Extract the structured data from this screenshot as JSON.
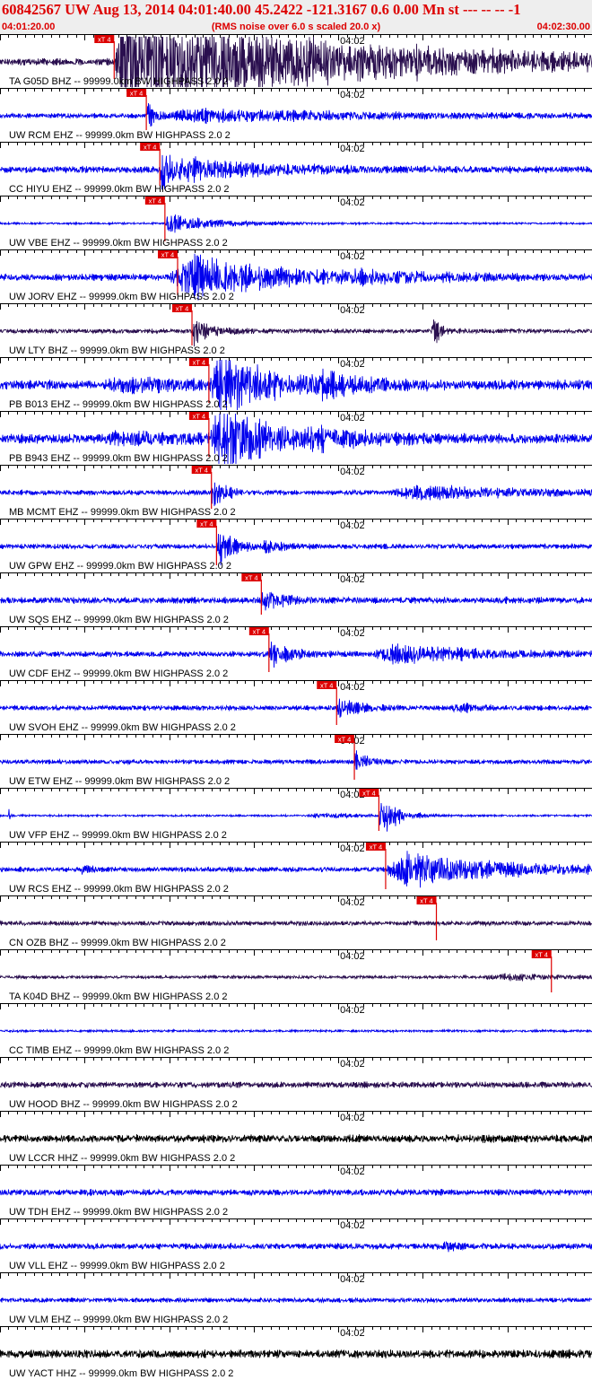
{
  "header": {
    "title": "60842567 UW Aug 13, 2014 04:01:40.00   45.2422 -121.3167  0.6 0.00 Mn st --- -- --  -1",
    "start_time": "04:01:20.00",
    "noise_note": "(RMS noise over 6.0 s scaled 20.0 x)",
    "end_time": "04:02:30.00"
  },
  "chart_data": {
    "type": "line",
    "x_unit": "seconds after 04:01:20.00",
    "xlim": [
      0,
      70
    ],
    "minute_mark": {
      "time": 40,
      "label": "04:02"
    },
    "pick_label": "xT 4",
    "event": {
      "time": 20
    },
    "colors": {
      "header": "#dd0000",
      "pick": "#dd0000",
      "axis": "#000000"
    },
    "traces": [
      {
        "label": "TA G05D BHZ -- 99999.0km BW  HIGHPASS  2.0  2",
        "color": "#2a0f4f",
        "pick": 13.5,
        "pick_len": 4.2,
        "noise": 0.18,
        "bursts": [
          {
            "t": 13.5,
            "amp": 2.6,
            "dur": 60,
            "rise": 1.2,
            "clip": true
          }
        ]
      },
      {
        "label": "UW RCM EHZ -- 99999.0km BW  HIGHPASS  2.0  2",
        "color": "#0000ee",
        "pick": 17.3,
        "pick_len": 3.9,
        "noise": 0.13,
        "bursts": [
          {
            "t": 17.3,
            "amp": 0.9,
            "dur": 2,
            "rise": 0.2
          },
          {
            "t": 20,
            "amp": 0.35,
            "dur": 48,
            "rise": 3
          }
        ]
      },
      {
        "label": "CC HIYU EHZ -- 99999.0km BW  HIGHPASS  2.0  2",
        "color": "#0000ee",
        "pick": 18.9,
        "pick_len": 4.1,
        "noise": 0.18,
        "bursts": [
          {
            "t": 18.9,
            "amp": 1.6,
            "dur": 2.5,
            "rise": 0.2
          },
          {
            "t": 20,
            "amp": 0.7,
            "dur": 20,
            "rise": 3
          }
        ]
      },
      {
        "label": "UW VBE EHZ -- 99999.0km BW  HIGHPASS  2.0  2",
        "color": "#0000ee",
        "pick": 19.5,
        "pick_len": 4.3,
        "noise": 0.05,
        "bursts": [
          {
            "t": 19.5,
            "amp": 0.55,
            "dur": 12,
            "rise": 0.3
          }
        ]
      },
      {
        "label": "UW JORV EHZ -- 99999.0km BW  HIGHPASS  2.0  2",
        "color": "#0000ee",
        "pick": 21.0,
        "pick_len": 4.3,
        "noise": 0.18,
        "bursts": [
          {
            "t": 20,
            "amp": 1.6,
            "dur": 20,
            "rise": 3
          },
          {
            "t": 40,
            "amp": 0.25,
            "dur": 20,
            "rise": 2
          }
        ]
      },
      {
        "label": "UW LTY BHZ -- 99999.0km BW  HIGHPASS  2.0  2",
        "color": "#2a0f4f",
        "pick": 22.7,
        "pick_len": 3.9,
        "noise": 0.12,
        "bursts": [
          {
            "t": 22.7,
            "amp": 0.9,
            "dur": 4,
            "rise": 0.3
          },
          {
            "t": 51,
            "amp": 1.0,
            "dur": 2,
            "rise": 0.3
          }
        ]
      },
      {
        "label": "PB B013 EHZ -- 99999.0km BW  HIGHPASS  2.0  2",
        "color": "#0000ee",
        "pick": 24.7,
        "pick_len": 4.3,
        "noise": 0.25,
        "bursts": [
          {
            "t": 12,
            "amp": 0.7,
            "dur": 10,
            "rise": 5
          },
          {
            "t": 24.7,
            "amp": 2.2,
            "dur": 12,
            "rise": 1.5
          },
          {
            "t": 36,
            "amp": 0.6,
            "dur": 12,
            "rise": 2
          }
        ]
      },
      {
        "label": "PB B943 EHZ -- 99999.0km BW  HIGHPASS  2.0  2",
        "color": "#0000ee",
        "pick": 24.7,
        "pick_len": 4.3,
        "noise": 0.25,
        "bursts": [
          {
            "t": 12,
            "amp": 0.8,
            "dur": 10,
            "rise": 5
          },
          {
            "t": 24.7,
            "amp": 2.2,
            "dur": 12,
            "rise": 1.5
          },
          {
            "t": 36,
            "amp": 0.5,
            "dur": 12,
            "rise": 2
          }
        ]
      },
      {
        "label": "MB MCMT EHZ -- 99999.0km BW  HIGHPASS  2.0  2",
        "color": "#0000ee",
        "pick": 25.0,
        "pick_len": 4.1,
        "noise": 0.13,
        "bursts": [
          {
            "t": 25.0,
            "amp": 1.0,
            "dur": 3,
            "rise": 0.2
          },
          {
            "t": 46,
            "amp": 0.5,
            "dur": 24,
            "rise": 4
          }
        ]
      },
      {
        "label": "UW GPW EHZ -- 99999.0km BW  HIGHPASS  2.0  2",
        "color": "#0000ee",
        "pick": 25.6,
        "pick_len": 4.4,
        "noise": 0.13,
        "bursts": [
          {
            "t": 25.6,
            "amp": 1.1,
            "dur": 4,
            "rise": 0.2
          },
          {
            "t": 31,
            "amp": 0.4,
            "dur": 4,
            "rise": 0.5
          }
        ]
      },
      {
        "label": "UW SQS EHZ -- 99999.0km BW  HIGHPASS  2.0  2",
        "color": "#0000ee",
        "pick": 30.9,
        "pick_len": 3.9,
        "noise": 0.17,
        "bursts": [
          {
            "t": 30.9,
            "amp": 0.6,
            "dur": 5,
            "rise": 0.3
          }
        ]
      },
      {
        "label": "UW CDF EHZ -- 99999.0km BW  HIGHPASS  2.0  2",
        "color": "#0000ee",
        "pick": 31.8,
        "pick_len": 4.3,
        "noise": 0.15,
        "bursts": [
          {
            "t": 31.8,
            "amp": 0.7,
            "dur": 5,
            "rise": 0.3
          },
          {
            "t": 44,
            "amp": 0.6,
            "dur": 22,
            "rise": 3
          }
        ]
      },
      {
        "label": "UW SVOH EHZ -- 99999.0km BW  HIGHPASS  2.0  2",
        "color": "#0000ee",
        "pick": 39.8,
        "pick_len": 4.2,
        "noise": 0.13,
        "bursts": [
          {
            "t": 39.8,
            "amp": 0.6,
            "dur": 5,
            "rise": 0.3
          },
          {
            "t": 53,
            "amp": 0.25,
            "dur": 6,
            "rise": 1
          }
        ]
      },
      {
        "label": "UW ETW EHZ -- 99999.0km BW  HIGHPASS  2.0  2",
        "color": "#0000ee",
        "pick": 41.9,
        "pick_len": 4.3,
        "noise": 0.12,
        "bursts": [
          {
            "t": 41.9,
            "amp": 0.6,
            "dur": 3,
            "rise": 0.2
          }
        ]
      },
      {
        "label": "UW VFP EHZ -- 99999.0km BW  HIGHPASS  2.0  2",
        "color": "#0000ee",
        "pick": 44.8,
        "pick_len": 4.0,
        "noise": 0.05,
        "bursts": [
          {
            "t": 1.0,
            "amp": 0.6,
            "dur": 0.4,
            "rise": 0.05
          },
          {
            "t": 36,
            "amp": 0.3,
            "dur": 8,
            "rise": 4
          },
          {
            "t": 44.8,
            "amp": 1.3,
            "dur": 4,
            "rise": 0.3
          }
        ]
      },
      {
        "label": "UW RCS EHZ -- 99999.0km BW  HIGHPASS  2.0  2",
        "color": "#0000ee",
        "pick": 45.6,
        "pick_len": 4.5,
        "noise": 0.13,
        "bursts": [
          {
            "t": 9.6,
            "amp": 0.5,
            "dur": 1.5,
            "rise": 0.2
          },
          {
            "t": 45.6,
            "amp": 1.1,
            "dur": 25,
            "rise": 2
          }
        ]
      },
      {
        "label": "CN OZB BHZ -- 99999.0km BW  HIGHPASS  2.0  2",
        "color": "#2a0f4f",
        "pick": 51.6,
        "pick_len": 4.2,
        "noise": 0.12,
        "bursts": []
      },
      {
        "label": "TA K04D BHZ -- 99999.0km BW  HIGHPASS  2.0  2",
        "color": "#2a0f4f",
        "pick": 65.2,
        "pick_len": 4.0,
        "noise": 0.08,
        "bursts": [
          {
            "t": 57,
            "amp": 0.25,
            "dur": 13,
            "rise": 3
          }
        ]
      },
      {
        "label": "CC TIMB EHZ -- 99999.0km BW  HIGHPASS  2.0  2",
        "color": "#0000ee",
        "pick": null,
        "pick_len": 0,
        "noise": 0.06,
        "bursts": []
      },
      {
        "label": "UW HOOD BHZ -- 99999.0km BW  HIGHPASS  2.0  2",
        "color": "#2a0f4f",
        "pick": null,
        "pick_len": 0,
        "noise": 0.16,
        "bursts": []
      },
      {
        "label": "UW LCCR HHZ -- 99999.0km BW  HIGHPASS  2.0  2",
        "color": "#000000",
        "pick": null,
        "pick_len": 0,
        "noise": 0.2,
        "bursts": []
      },
      {
        "label": "UW TDH EHZ -- 99999.0km BW  HIGHPASS  2.0  2",
        "color": "#0000ee",
        "pick": null,
        "pick_len": 0,
        "noise": 0.16,
        "bursts": []
      },
      {
        "label": "UW VLL EHZ -- 99999.0km BW  HIGHPASS  2.0  2",
        "color": "#0000ee",
        "pick": null,
        "pick_len": 0,
        "noise": 0.16,
        "bursts": [
          {
            "t": 52,
            "amp": 0.3,
            "dur": 3,
            "rise": 1
          }
        ]
      },
      {
        "label": "UW VLM EHZ -- 99999.0km BW  HIGHPASS  2.0  2",
        "color": "#0000ee",
        "pick": null,
        "pick_len": 0,
        "noise": 0.12,
        "bursts": []
      },
      {
        "label": "UW YACT HHZ -- 99999.0km BW  HIGHPASS  2.0  2",
        "color": "#000000",
        "pick": null,
        "pick_len": 0,
        "noise": 0.22,
        "bursts": []
      }
    ]
  }
}
